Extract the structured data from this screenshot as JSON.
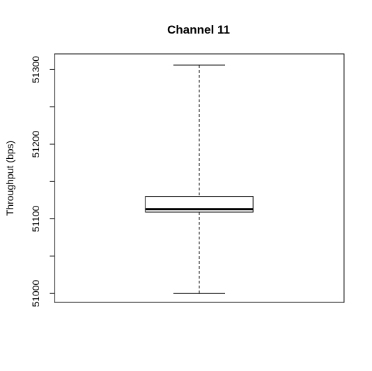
{
  "chart_data": {
    "type": "box",
    "title": "Channel 11",
    "xlabel": "",
    "ylabel": "Throughput (bps)",
    "ylim": [
      50988,
      51321
    ],
    "yticks": [
      51000,
      51100,
      51200,
      51300
    ],
    "ytick_labels": [
      "51000",
      "51100",
      "51200",
      "51300"
    ],
    "series": [
      {
        "min": 51000,
        "q1": 51109,
        "median": 51113,
        "q3": 51130,
        "max": 51306
      }
    ],
    "grid": false,
    "frame": true,
    "colors": {
      "stroke": "#000000",
      "fill": "#ffffff",
      "background": "#ffffff"
    }
  }
}
